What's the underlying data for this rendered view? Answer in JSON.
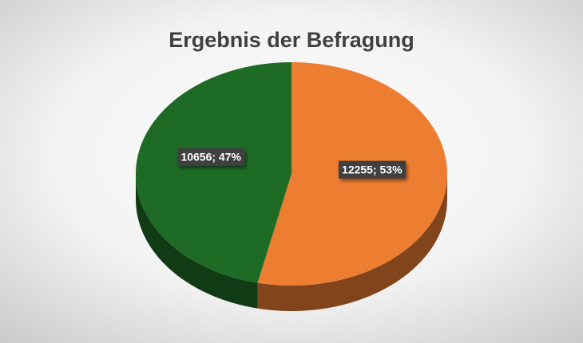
{
  "chart_data": {
    "type": "pie",
    "title": "Ergebnis der Befragung",
    "values": [
      12255,
      10656
    ],
    "value_labels": [
      "12255; 53%",
      "10656; 47%"
    ],
    "colors": [
      "#ED7D31",
      "#1E6B26"
    ],
    "style": "3d"
  }
}
